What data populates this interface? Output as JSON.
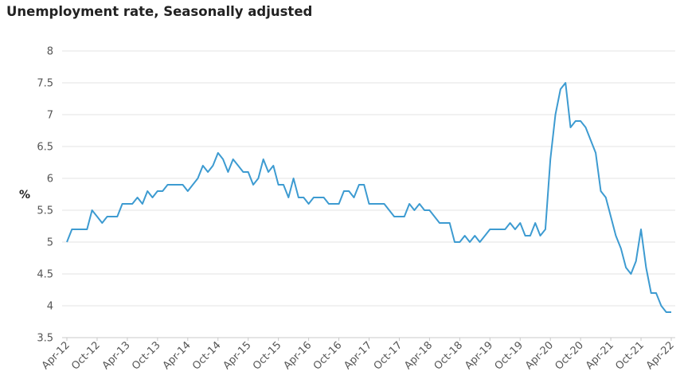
{
  "chart_data": {
    "type": "line",
    "title": "Unemployment rate, Seasonally adjusted",
    "ylabel": "%",
    "xlabel": "",
    "ylim": [
      3.5,
      8
    ],
    "yticks": [
      "3.5",
      "4",
      "4.5",
      "5",
      "5.5",
      "6",
      "6.5",
      "7",
      "7.5",
      "8"
    ],
    "x_start": "Apr-12",
    "x_end": "Apr-22",
    "frequency": "monthly",
    "x_ticks": [
      "Apr-12",
      "Oct-12",
      "Apr-13",
      "Oct-13",
      "Apr-14",
      "Oct-14",
      "Apr-15",
      "Oct-15",
      "Apr-16",
      "Oct-16",
      "Apr-17",
      "Oct-17",
      "Apr-18",
      "Oct-18",
      "Apr-19",
      "Oct-19",
      "Apr-20",
      "Oct-20",
      "Apr-21",
      "Oct-21",
      "Apr-22"
    ],
    "grid": true,
    "line_color": "#3d9bd1",
    "values": [
      5.0,
      5.2,
      5.2,
      5.2,
      5.2,
      5.5,
      5.4,
      5.3,
      5.4,
      5.4,
      5.4,
      5.6,
      5.6,
      5.6,
      5.7,
      5.6,
      5.8,
      5.7,
      5.8,
      5.8,
      5.9,
      5.9,
      5.9,
      5.9,
      5.8,
      5.9,
      6.0,
      6.2,
      6.1,
      6.2,
      6.4,
      6.3,
      6.1,
      6.3,
      6.2,
      6.1,
      6.1,
      5.9,
      6.0,
      6.3,
      6.1,
      6.2,
      5.9,
      5.9,
      5.7,
      6.0,
      5.7,
      5.7,
      5.6,
      5.7,
      5.7,
      5.7,
      5.6,
      5.6,
      5.6,
      5.8,
      5.8,
      5.7,
      5.9,
      5.9,
      5.6,
      5.6,
      5.6,
      5.6,
      5.5,
      5.4,
      5.4,
      5.4,
      5.6,
      5.5,
      5.6,
      5.5,
      5.5,
      5.4,
      5.3,
      5.3,
      5.3,
      5.0,
      5.0,
      5.1,
      5.0,
      5.1,
      5.0,
      5.1,
      5.2,
      5.2,
      5.2,
      5.2,
      5.3,
      5.2,
      5.3,
      5.1,
      5.1,
      5.3,
      5.1,
      5.2,
      6.3,
      7.0,
      7.4,
      7.5,
      6.8,
      6.9,
      6.9,
      6.8,
      6.6,
      6.4,
      5.8,
      5.7,
      5.4,
      5.1,
      4.9,
      4.6,
      4.5,
      4.7,
      5.2,
      4.6,
      4.2,
      4.2,
      4.0,
      3.9,
      3.9
    ]
  }
}
